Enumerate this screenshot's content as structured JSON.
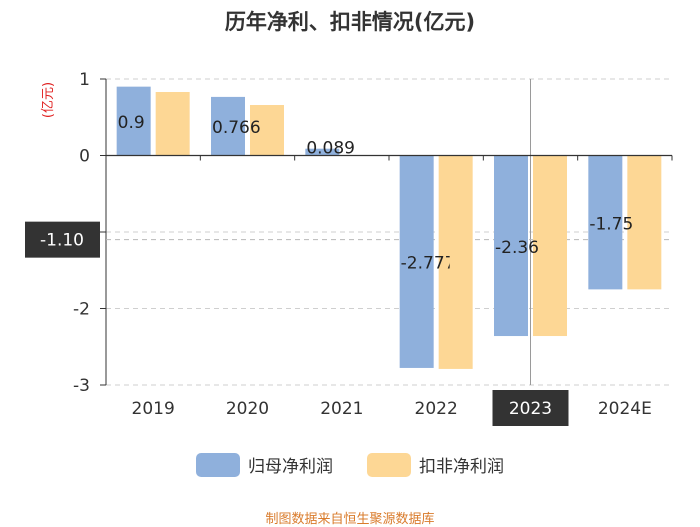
{
  "chart_data": {
    "type": "bar",
    "title": "历年净利、扣非情况(亿元)",
    "ylabel": "(亿元)",
    "categories": [
      "2019",
      "2020",
      "2021",
      "2022",
      "2023",
      "2024E"
    ],
    "series": [
      {
        "name": "归母净利润",
        "color": "#8fb0dc",
        "values": [
          0.9,
          0.766,
          0.089,
          -2.777,
          -2.36,
          -1.75
        ],
        "labels": [
          "0.9",
          "0.766",
          "0.089",
          "-2.777",
          "-2.36",
          "-1.75"
        ]
      },
      {
        "name": "扣非净利润",
        "color": "#fdd795",
        "values": [
          0.83,
          0.66,
          0.0,
          -2.79,
          -2.36,
          -1.75
        ]
      }
    ],
    "ylim": [
      -3,
      1
    ],
    "yticks": [
      "1",
      "0",
      "-1",
      "-2",
      "-3"
    ],
    "grid": true,
    "crosshair": {
      "y_value": -1.1,
      "y_label": "-1.10",
      "category": "2023"
    },
    "legend_position": "bottom-center"
  },
  "source_note": "制图数据来自恒生聚源数据库",
  "source_color": "#d97b2b"
}
